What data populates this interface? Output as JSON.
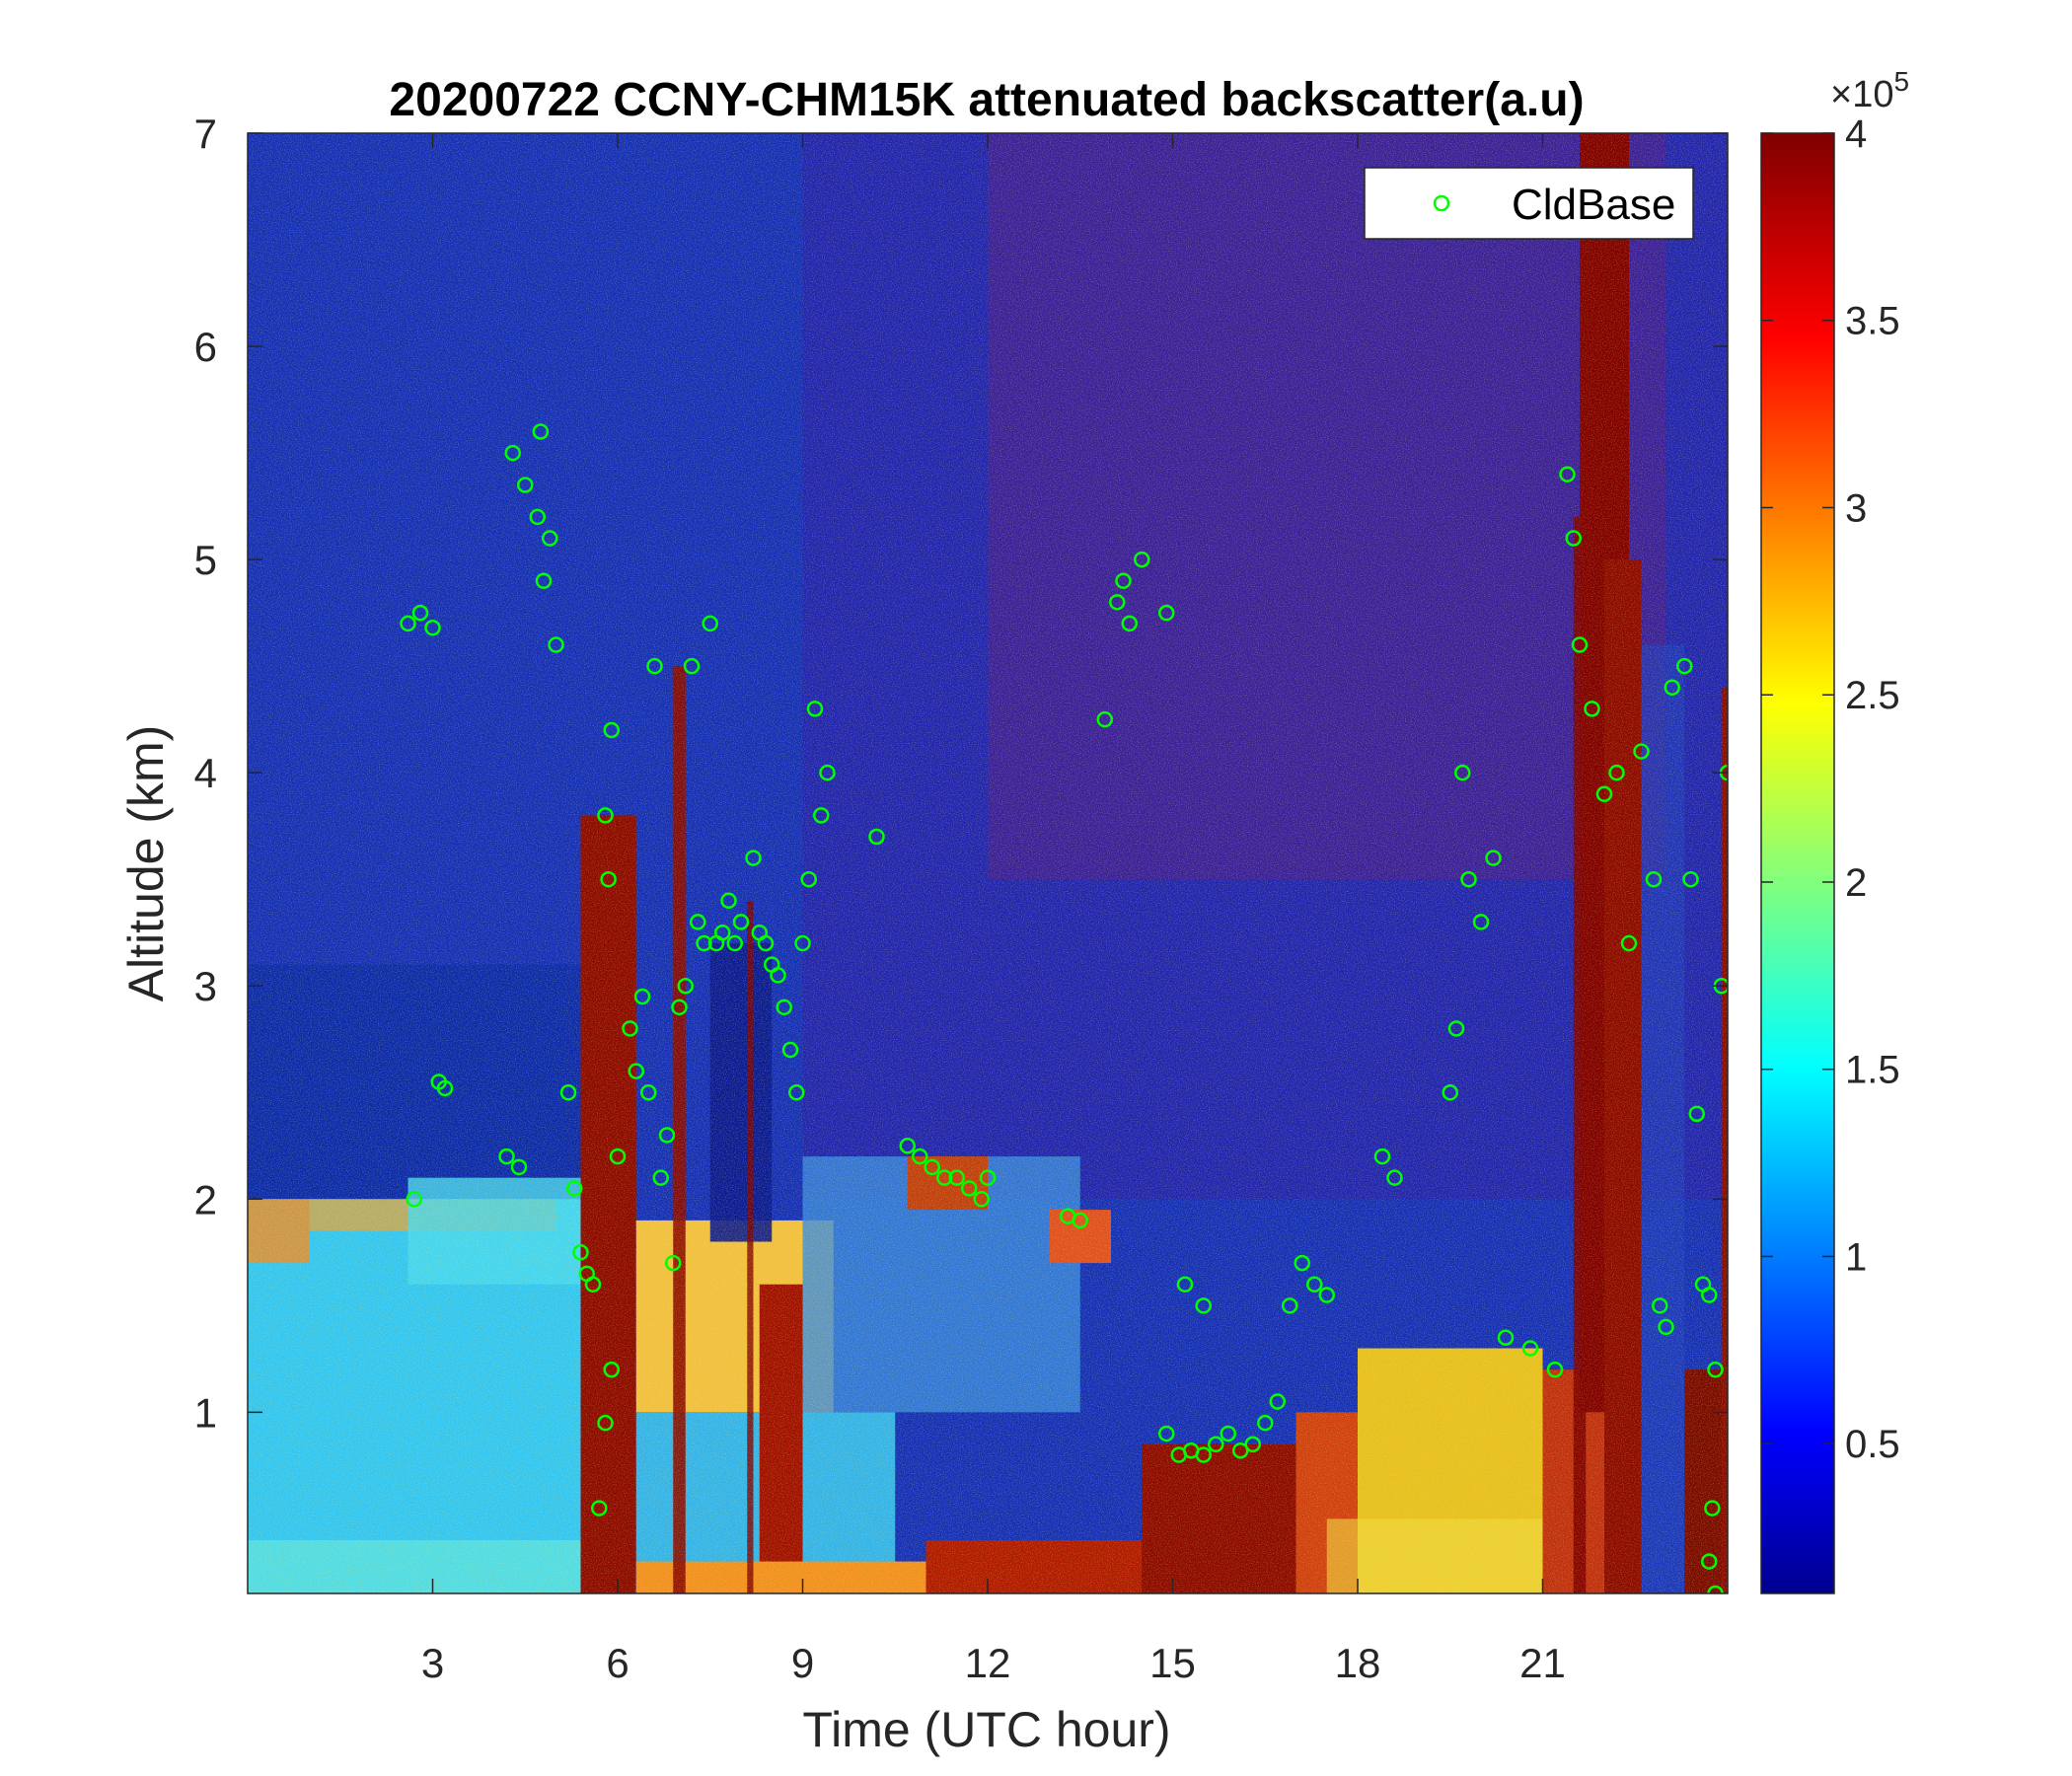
{
  "chart_data": {
    "type": "heatmap",
    "title": "20200722 CCNY-CHM15K attenuated backscatter(a.u)",
    "xlabel": "Time (UTC hour)",
    "ylabel": "Altitude (km)",
    "xlim": [
      0,
      24
    ],
    "ylim": [
      0.15,
      7
    ],
    "xticks": [
      3,
      6,
      9,
      12,
      15,
      18,
      21
    ],
    "xtick_labels": [
      "3",
      "6",
      "9",
      "12",
      "15",
      "18",
      "21"
    ],
    "yticks": [
      1,
      2,
      3,
      4,
      5,
      6,
      7
    ],
    "ytick_labels": [
      "1",
      "2",
      "3",
      "4",
      "5",
      "6",
      "7"
    ],
    "colorbar": {
      "colormap": "jet",
      "clim": [
        0.1,
        4
      ],
      "exponent_label": "×10",
      "exponent_power": "5",
      "ticks": [
        0.5,
        1,
        1.5,
        2,
        2.5,
        3,
        3.5,
        4
      ],
      "tick_labels": [
        "0.5",
        "1",
        "1.5",
        "2",
        "2.5",
        "3",
        "3.5",
        "4"
      ]
    },
    "legend": {
      "placement": "top-right",
      "entries": [
        {
          "label": "CldBase",
          "marker": "circle",
          "color": "#00ff00"
        }
      ]
    },
    "series": [
      {
        "name": "CldBase",
        "marker": "circle",
        "color": "#00ff00",
        "points": [
          [
            2.6,
            4.7
          ],
          [
            2.8,
            4.75
          ],
          [
            3.0,
            4.68
          ],
          [
            2.7,
            2.0
          ],
          [
            3.1,
            2.55
          ],
          [
            3.2,
            2.52
          ],
          [
            4.3,
            5.5
          ],
          [
            4.5,
            5.35
          ],
          [
            4.7,
            5.2
          ],
          [
            4.9,
            5.1
          ],
          [
            4.8,
            4.9
          ],
          [
            4.75,
            5.6
          ],
          [
            5.0,
            4.6
          ],
          [
            4.2,
            2.2
          ],
          [
            4.4,
            2.15
          ],
          [
            5.2,
            2.5
          ],
          [
            5.3,
            2.05
          ],
          [
            5.4,
            1.75
          ],
          [
            5.5,
            1.65
          ],
          [
            5.6,
            1.6
          ],
          [
            5.7,
            0.55
          ],
          [
            5.8,
            0.95
          ],
          [
            5.9,
            1.2
          ],
          [
            5.8,
            3.8
          ],
          [
            5.9,
            4.2
          ],
          [
            5.85,
            3.5
          ],
          [
            6.0,
            2.2
          ],
          [
            6.2,
            2.8
          ],
          [
            6.3,
            2.6
          ],
          [
            6.4,
            2.95
          ],
          [
            6.5,
            2.5
          ],
          [
            6.6,
            4.5
          ],
          [
            6.7,
            2.1
          ],
          [
            6.8,
            2.3
          ],
          [
            6.9,
            1.7
          ],
          [
            7.0,
            2.9
          ],
          [
            7.1,
            3.0
          ],
          [
            7.2,
            4.5
          ],
          [
            7.3,
            3.3
          ],
          [
            7.4,
            3.2
          ],
          [
            7.5,
            4.7
          ],
          [
            7.6,
            3.2
          ],
          [
            7.7,
            3.25
          ],
          [
            7.8,
            3.4
          ],
          [
            7.9,
            3.2
          ],
          [
            8.0,
            3.3
          ],
          [
            8.2,
            3.6
          ],
          [
            8.3,
            3.25
          ],
          [
            8.4,
            3.2
          ],
          [
            8.5,
            3.1
          ],
          [
            8.6,
            3.05
          ],
          [
            8.7,
            2.9
          ],
          [
            8.8,
            2.7
          ],
          [
            8.9,
            2.5
          ],
          [
            9.0,
            3.2
          ],
          [
            9.1,
            3.5
          ],
          [
            9.2,
            4.3
          ],
          [
            9.3,
            3.8
          ],
          [
            9.4,
            4.0
          ],
          [
            10.2,
            3.7
          ],
          [
            10.7,
            2.25
          ],
          [
            10.9,
            2.2
          ],
          [
            11.1,
            2.15
          ],
          [
            11.3,
            2.1
          ],
          [
            11.5,
            2.1
          ],
          [
            11.7,
            2.05
          ],
          [
            11.9,
            2.0
          ],
          [
            12.0,
            2.1
          ],
          [
            13.3,
            1.92
          ],
          [
            13.5,
            1.9
          ],
          [
            13.9,
            4.25
          ],
          [
            14.1,
            4.8
          ],
          [
            14.2,
            4.9
          ],
          [
            14.3,
            4.7
          ],
          [
            14.5,
            5.0
          ],
          [
            14.9,
            4.75
          ],
          [
            14.9,
            0.9
          ],
          [
            15.1,
            0.8
          ],
          [
            15.3,
            0.82
          ],
          [
            15.5,
            0.8
          ],
          [
            15.7,
            0.85
          ],
          [
            15.9,
            0.9
          ],
          [
            16.1,
            0.82
          ],
          [
            16.3,
            0.85
          ],
          [
            16.5,
            0.95
          ],
          [
            16.7,
            1.05
          ],
          [
            15.2,
            1.6
          ],
          [
            15.5,
            1.5
          ],
          [
            16.9,
            1.5
          ],
          [
            17.1,
            1.7
          ],
          [
            17.3,
            1.6
          ],
          [
            17.5,
            1.55
          ],
          [
            18.4,
            2.2
          ],
          [
            18.6,
            2.1
          ],
          [
            19.5,
            2.5
          ],
          [
            19.6,
            2.8
          ],
          [
            19.7,
            4.0
          ],
          [
            19.8,
            3.5
          ],
          [
            20.0,
            3.3
          ],
          [
            20.2,
            3.6
          ],
          [
            20.4,
            1.35
          ],
          [
            20.8,
            1.3
          ],
          [
            21.2,
            1.2
          ],
          [
            21.4,
            5.4
          ],
          [
            21.5,
            5.1
          ],
          [
            21.6,
            4.6
          ],
          [
            21.8,
            4.3
          ],
          [
            22.0,
            3.9
          ],
          [
            22.2,
            4.0
          ],
          [
            22.4,
            3.2
          ],
          [
            22.6,
            4.1
          ],
          [
            22.8,
            3.5
          ],
          [
            22.9,
            1.5
          ],
          [
            23.0,
            1.4
          ],
          [
            23.1,
            4.4
          ],
          [
            23.3,
            4.5
          ],
          [
            23.4,
            3.5
          ],
          [
            23.5,
            2.4
          ],
          [
            23.6,
            1.6
          ],
          [
            23.7,
            1.55
          ],
          [
            23.8,
            1.2
          ],
          [
            23.9,
            3.0
          ],
          [
            24.0,
            4.0
          ],
          [
            23.75,
            0.55
          ],
          [
            23.8,
            0.15
          ],
          [
            23.7,
            0.3
          ]
        ]
      }
    ]
  }
}
